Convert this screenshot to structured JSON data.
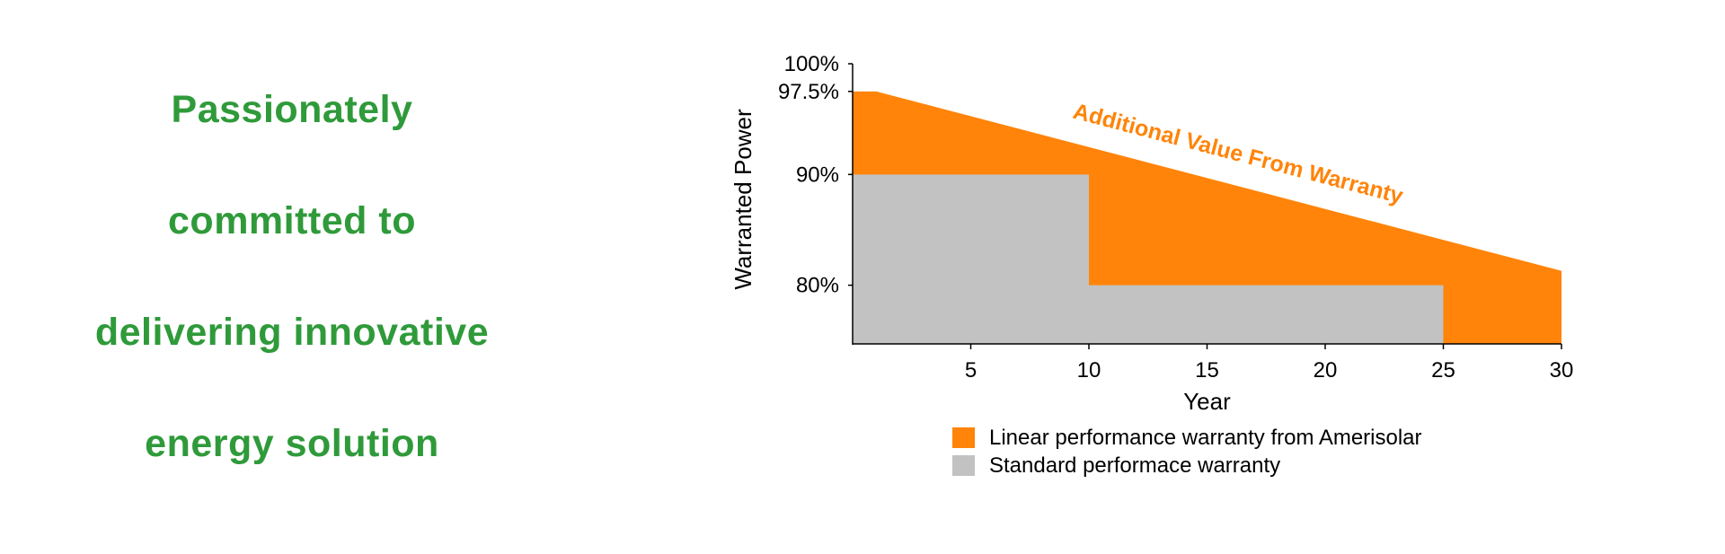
{
  "tagline": {
    "lines": [
      "Passionately",
      "committed to",
      "delivering innovative",
      "energy solution"
    ]
  },
  "colors": {
    "tagline": "#2f9a3a",
    "orange": "#ff8409",
    "gray": "#c2c2c2",
    "axis": "#000000"
  },
  "chart_data": {
    "type": "area",
    "xlabel": "Year",
    "ylabel": "Warranted Power",
    "xlim": [
      0,
      30
    ],
    "ylim": [
      74.7,
      100
    ],
    "x_ticks": [
      5,
      10,
      15,
      20,
      25,
      30
    ],
    "y_ticks": [
      {
        "value": 100,
        "label": "100%"
      },
      {
        "value": 97.5,
        "label": "97.5%"
      },
      {
        "value": 90,
        "label": "90%"
      },
      {
        "value": 80,
        "label": "80%"
      }
    ],
    "annotation": "Additional Value From Warranty",
    "legend_position": "bottom",
    "series": [
      {
        "name": "Linear performance warranty from Amerisolar",
        "color": "#ff8409",
        "points": [
          [
            0,
            97.5
          ],
          [
            1,
            97.5
          ],
          [
            30,
            81.3
          ]
        ]
      },
      {
        "name": "Standard performace warranty",
        "color": "#c2c2c2",
        "points": [
          [
            0,
            90
          ],
          [
            10,
            90
          ],
          [
            10,
            80
          ],
          [
            25,
            80
          ],
          [
            25,
            74.7
          ]
        ]
      }
    ]
  }
}
